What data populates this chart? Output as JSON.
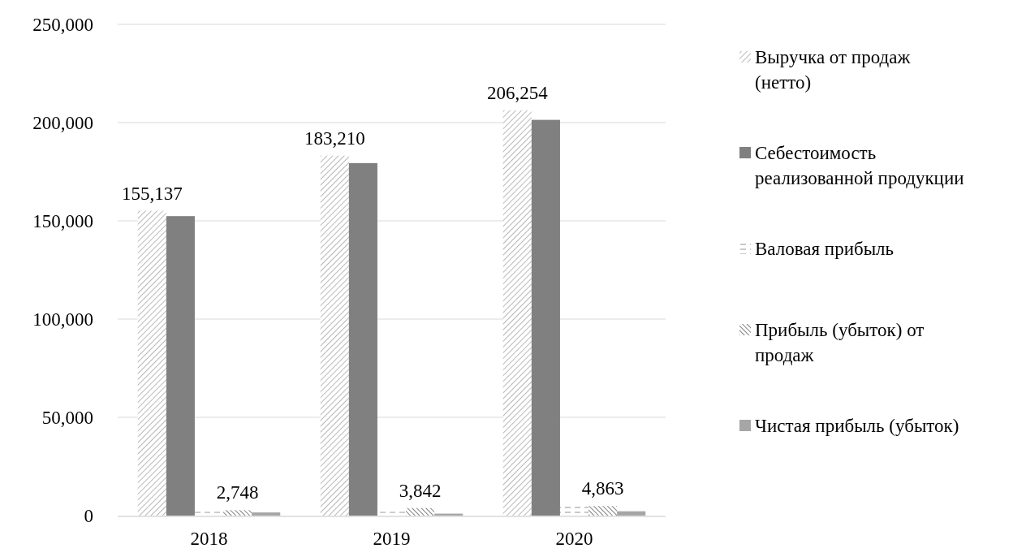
{
  "chart_data": {
    "type": "bar",
    "categories": [
      "2018",
      "2019",
      "2020"
    ],
    "series": [
      {
        "name": "Выручка от продаж (нетто)",
        "color": "#a6a6a6",
        "values": [
          155137,
          183210,
          206254
        ],
        "value_labels": [
          "155,137",
          "183,210",
          "206,254"
        ]
      },
      {
        "name": "Себестоимость реализованной продукции",
        "color": "#808080",
        "values": [
          152400,
          179400,
          201400
        ]
      },
      {
        "name": "Валовая прибыль",
        "color": "#a6a6a6",
        "values": [
          2000,
          2000,
          4900
        ]
      },
      {
        "name": "Прибыль (убыток) от продаж",
        "color": "#808080",
        "values": [
          2748,
          3842,
          4863
        ],
        "value_labels": [
          "2,748",
          "3,842",
          "4,863"
        ]
      },
      {
        "name": "Чистая прибыль (убыток)",
        "color": "#a6a6a6",
        "values": [
          1600,
          1000,
          2200
        ]
      }
    ],
    "ylim": [
      0,
      250000
    ],
    "yticks": [
      {
        "value": 0,
        "label": "0"
      },
      {
        "value": 50000,
        "label": "50,000"
      },
      {
        "value": 100000,
        "label": "100,000"
      },
      {
        "value": 150000,
        "label": "150,000"
      },
      {
        "value": 200000,
        "label": "200,000"
      },
      {
        "value": 250000,
        "label": "250,000"
      }
    ],
    "grid": "y",
    "legend": "right"
  }
}
